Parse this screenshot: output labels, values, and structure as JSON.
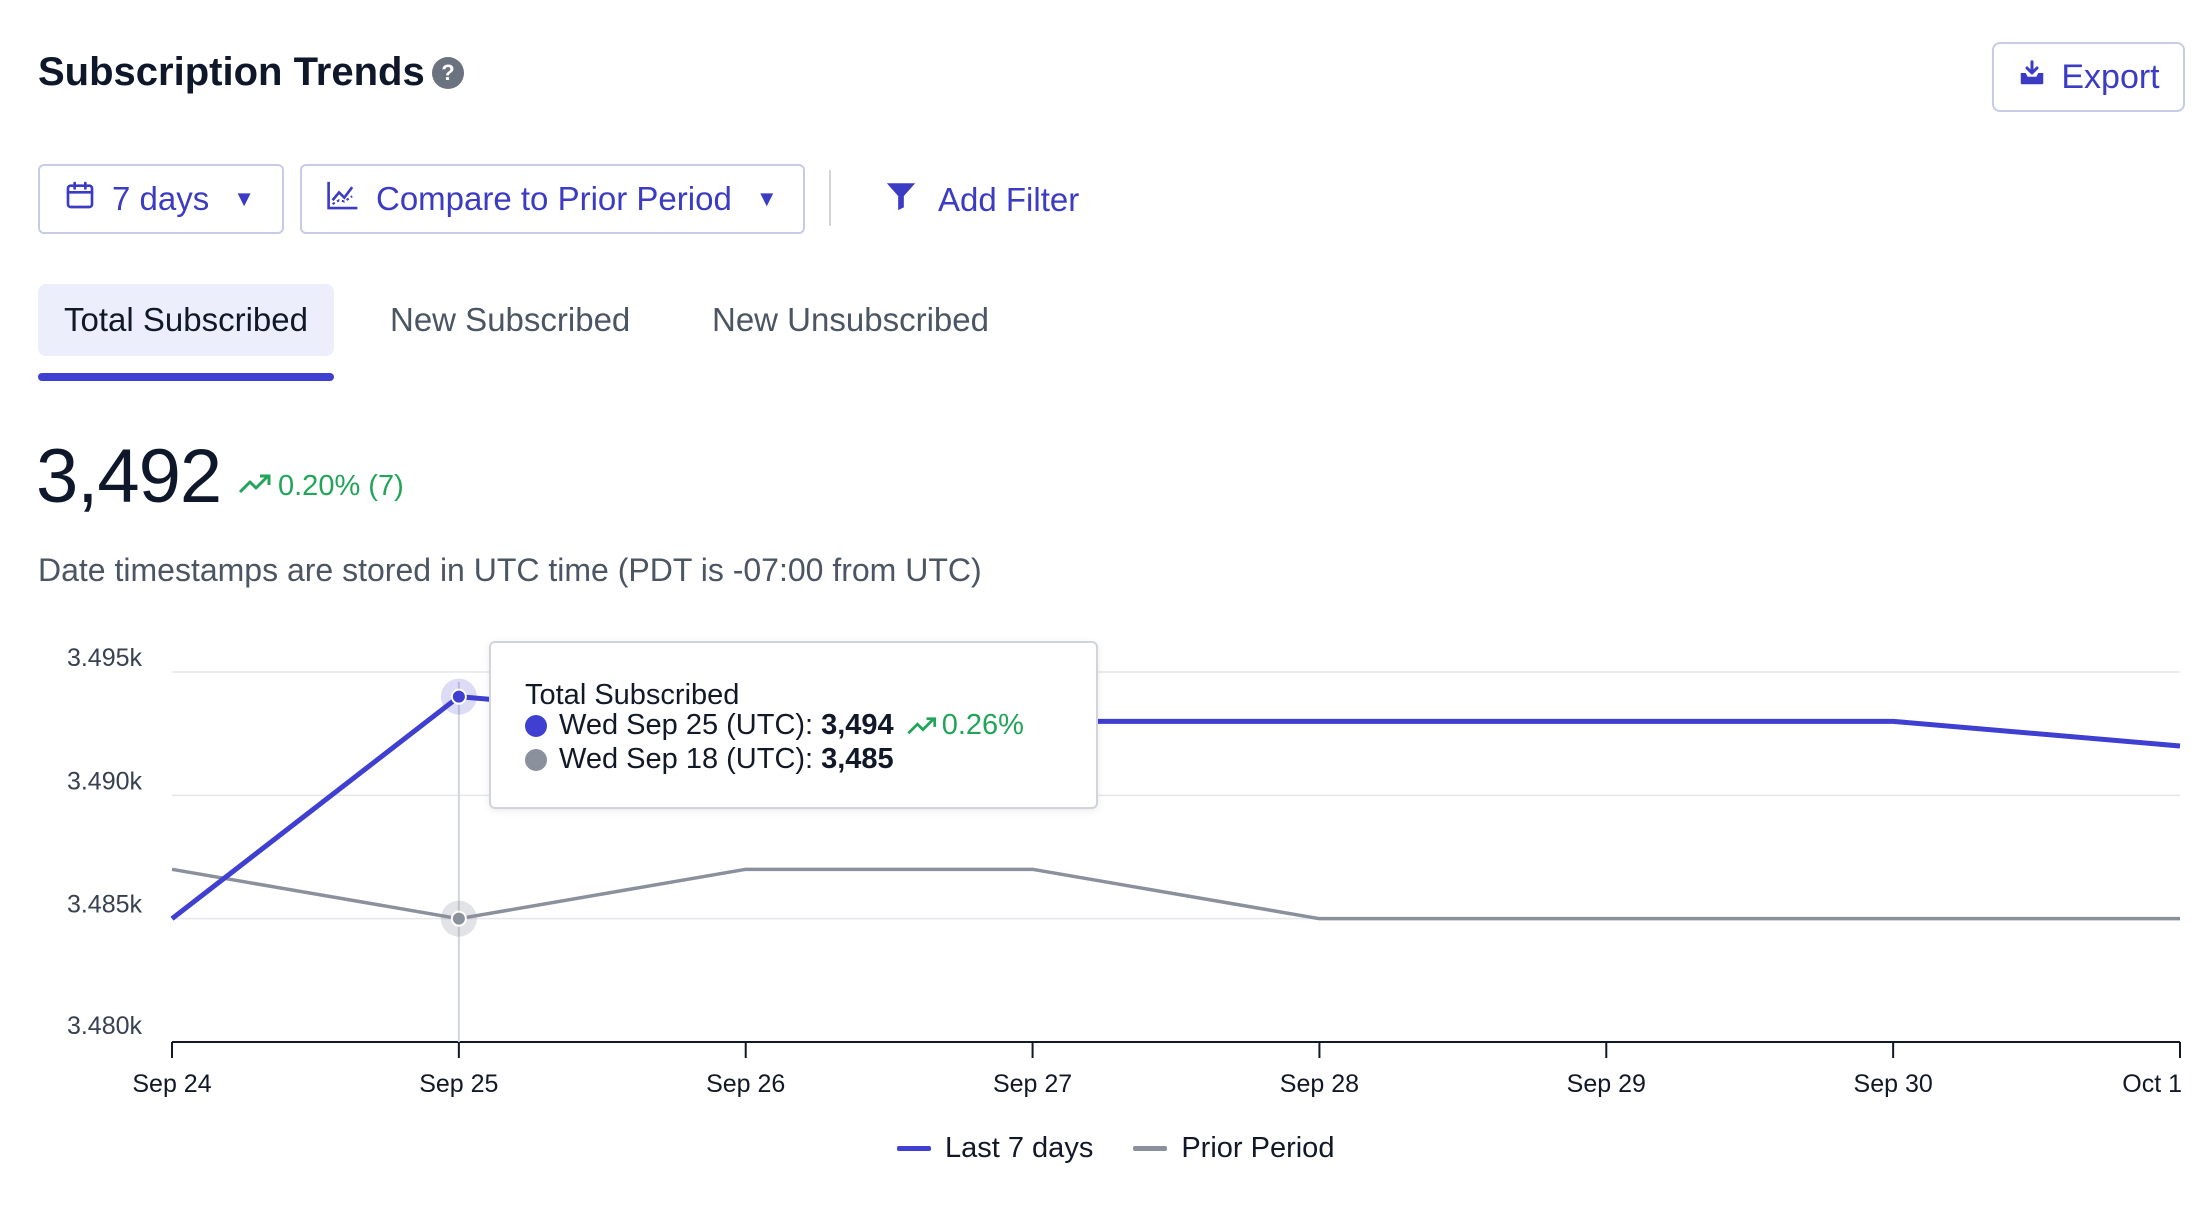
{
  "header": {
    "title": "Subscription Trends",
    "help_icon": "question-circle-icon",
    "export_label": "Export",
    "export_icon": "download-tray-icon"
  },
  "toolbar": {
    "range_label": "7 days",
    "range_icon": "calendar-icon",
    "compare_label": "Compare to Prior Period",
    "compare_icon": "line-chart-icon",
    "filter_label": "Add Filter",
    "filter_icon": "funnel-icon"
  },
  "tabs": [
    {
      "label": "Total Subscribed",
      "active": true
    },
    {
      "label": "New Subscribed",
      "active": false
    },
    {
      "label": "New Unsubscribed",
      "active": false
    }
  ],
  "metric": {
    "value": "3,492",
    "delta": "0.20% (7)",
    "delta_color": "#22a55a"
  },
  "note": "Date timestamps are stored in UTC time (PDT is -07:00 from UTC)",
  "tooltip": {
    "title": "Total Subscribed",
    "current_label": "Wed Sep 25 (UTC):",
    "current_value": "3,494",
    "current_delta": "0.26%",
    "prior_label": "Wed Sep 18 (UTC):",
    "prior_value": "3,485"
  },
  "colors": {
    "accent": "#3f3fd1",
    "prior": "#8b919c",
    "positive": "#22a55a"
  },
  "chart_data": {
    "type": "line",
    "x": [
      "Sep 24",
      "Sep 25",
      "Sep 26",
      "Sep 27",
      "Sep 28",
      "Sep 29",
      "Sep 30",
      "Oct 1"
    ],
    "series": [
      {
        "name": "Last 7 days",
        "values": [
          3485,
          3494,
          3493,
          3493,
          3493,
          3493,
          3493,
          3492
        ]
      },
      {
        "name": "Prior Period",
        "values": [
          3487,
          3485,
          3487,
          3487,
          3485,
          3485,
          3485,
          3485
        ]
      }
    ],
    "yticks": [
      "3.495k",
      "3.490k",
      "3.485k",
      "3.480k"
    ],
    "ytick_values": [
      3495,
      3490,
      3485,
      3480
    ],
    "ylim": [
      3480,
      3495
    ],
    "highlight_index": 1,
    "grid": true,
    "legend_position": "bottom-center"
  }
}
